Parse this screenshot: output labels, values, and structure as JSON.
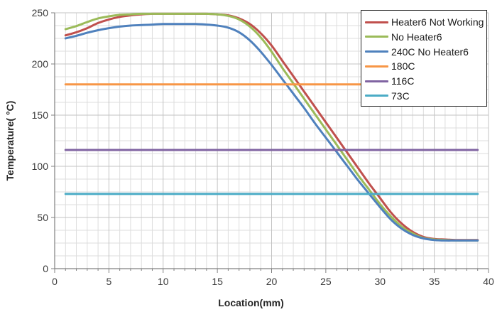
{
  "chart_data": {
    "type": "line",
    "title": "",
    "xlabel": "Location(mm)",
    "ylabel": "Temperature( °C)",
    "xlim": [
      0,
      40
    ],
    "ylim": [
      0,
      250
    ],
    "x_major_tick": 5,
    "x_minor_tick": 1,
    "y_major_tick": 50,
    "y_minor_tick": 12.5,
    "x_tick_labels": [
      0,
      5,
      10,
      15,
      20,
      25,
      30,
      35,
      40
    ],
    "y_tick_labels": [
      0,
      50,
      100,
      150,
      200,
      250
    ],
    "grid": true,
    "legend_position": "top-right",
    "x": [
      1,
      2,
      3,
      4,
      5,
      6,
      7,
      8,
      9,
      10,
      11,
      12,
      13,
      14,
      15,
      16,
      17,
      18,
      19,
      20,
      21,
      22,
      23,
      24,
      25,
      26,
      27,
      28,
      29,
      30,
      31,
      32,
      33,
      34,
      35,
      36,
      37,
      38,
      39
    ],
    "series": [
      {
        "name": "Heater6 Not Working",
        "color": "#C0504D",
        "values": [
          228,
          231,
          235,
          240,
          243.5,
          246,
          247.5,
          248.5,
          249,
          249,
          249,
          249,
          249,
          249,
          248.5,
          247.5,
          244.5,
          239,
          230,
          218,
          203,
          188,
          173,
          158,
          143,
          128,
          113,
          98,
          83,
          69,
          55,
          44,
          36,
          31,
          29,
          28.5,
          28,
          28,
          28
        ]
      },
      {
        "name": "No Heater6",
        "color": "#9BBB59",
        "values": [
          234,
          237,
          241,
          244.5,
          246.5,
          248,
          248.5,
          249,
          249,
          249,
          249,
          249,
          249,
          249,
          248.5,
          247,
          243.5,
          236.5,
          226,
          212,
          196,
          181,
          166,
          151,
          136,
          121,
          106,
          91,
          77,
          63,
          51,
          41,
          34.5,
          30,
          28.5,
          28,
          27.5,
          27.5,
          27.5
        ]
      },
      {
        "name": "240C No Heater6",
        "color": "#4F81BD",
        "values": [
          225,
          227.5,
          230.5,
          233,
          235,
          236.5,
          237.5,
          238,
          238.5,
          239,
          239,
          239,
          239,
          238.5,
          237.5,
          235.5,
          231,
          223,
          212,
          199,
          185,
          171,
          157,
          142,
          128,
          114,
          100,
          86,
          73,
          60,
          48,
          39,
          33,
          29.5,
          28,
          27.5,
          27.5,
          27.5,
          27.5
        ]
      },
      {
        "name": "180C",
        "color": "#F79646",
        "constant": 180,
        "x_span": [
          1,
          39
        ]
      },
      {
        "name": "116C",
        "color": "#8064A2",
        "constant": 116,
        "x_span": [
          1,
          39
        ]
      },
      {
        "name": "73C",
        "color": "#4BACC6",
        "constant": 73,
        "x_span": [
          1,
          39
        ]
      }
    ],
    "colors": {
      "axis_line": "#808080",
      "major_grid": "#c3c3c3",
      "minor_grid": "#dddddd",
      "tick_label": "#3a3a3a"
    }
  }
}
